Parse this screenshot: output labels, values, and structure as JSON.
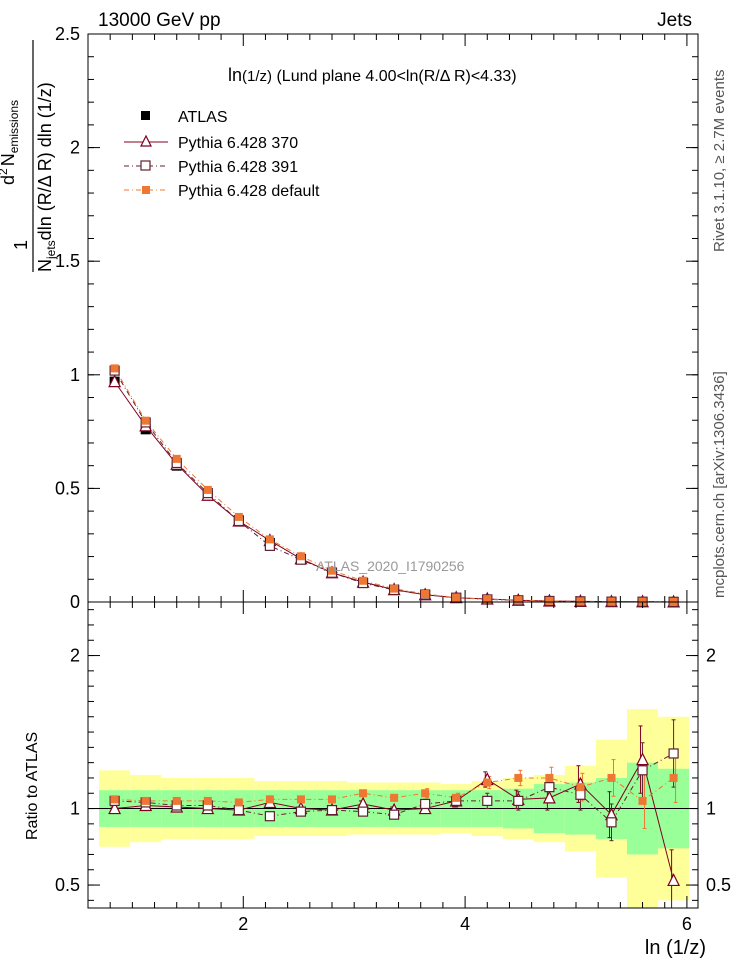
{
  "header": {
    "left": "13000 GeV pp",
    "right": "Jets"
  },
  "side": {
    "rivet": "Rivet 3.1.10, ≥ 2.7M events",
    "mcplots": "mcplots.cern.ch [arXiv:1306.3436]"
  },
  "watermark": "ATLAS_2020_I1790256",
  "chart_data": {
    "type": "scatter",
    "title": "ln(1/z) (Lund plane 4.00<ln(R/Δ R)<4.33)",
    "title_main": "ln",
    "title_sub": "(1/z)",
    "title_rest": " (Lund plane 4.00<ln(R/Δ R)<4.33)",
    "xlabel": "ln (1/z)",
    "ylabel": "1/N_jets d²N_emissions / dln(R/ΔR) dln(1/z)",
    "ylabel_parts": {
      "one": "1",
      "d2": "d",
      "two": "2",
      "N": "N",
      "emissions": "emissions",
      "Njets_N": "N",
      "jets": "jets",
      "dln": "dln (R/Δ R) dln (1/z)"
    },
    "ratio_ylabel": "Ratio to ATLAS",
    "xlim": [
      0.6,
      6.1
    ],
    "ylim": [
      0,
      2.5
    ],
    "ratio_ylim": [
      0.35,
      2.35
    ],
    "main_yticks": [
      {
        "v": 0,
        "label": "0"
      },
      {
        "v": 0.5,
        "label": "0.5"
      },
      {
        "v": 1,
        "label": "1"
      },
      {
        "v": 1.5,
        "label": "1.5"
      },
      {
        "v": 2,
        "label": "2"
      },
      {
        "v": 2.5,
        "label": "2.5"
      }
    ],
    "ratio_yticks": [
      {
        "v": 0.5,
        "label": "0.5"
      },
      {
        "v": 1,
        "label": "1"
      },
      {
        "v": 2,
        "label": "2"
      }
    ],
    "xticks": [
      {
        "v": 2,
        "label": "2"
      },
      {
        "v": 4,
        "label": "4"
      },
      {
        "v": 6,
        "label": "6"
      }
    ],
    "x": [
      0.84,
      1.12,
      1.4,
      1.68,
      1.96,
      2.24,
      2.52,
      2.8,
      3.08,
      3.36,
      3.64,
      3.92,
      4.2,
      4.48,
      4.76,
      5.04,
      5.32,
      5.6,
      5.88
    ],
    "bins": [
      0.7,
      0.98,
      1.26,
      1.54,
      1.82,
      2.1,
      2.38,
      2.66,
      2.94,
      3.22,
      3.5,
      3.78,
      4.06,
      4.34,
      4.62,
      4.9,
      5.18,
      5.46,
      5.74,
      6.02
    ],
    "data": {
      "name": "ATLAS",
      "values": [
        0.97,
        0.76,
        0.6,
        0.47,
        0.36,
        0.26,
        0.19,
        0.13,
        0.085,
        0.055,
        0.032,
        0.018,
        0.011,
        0.007,
        0.004,
        0.0025,
        0.0015,
        0.0009,
        0.0005
      ],
      "band_inner": [
        0.12,
        0.12,
        0.12,
        0.12,
        0.12,
        0.12,
        0.12,
        0.12,
        0.12,
        0.12,
        0.12,
        0.12,
        0.12,
        0.13,
        0.16,
        0.17,
        0.2,
        0.3,
        0.26
      ],
      "band_outer": [
        0.25,
        0.22,
        0.2,
        0.2,
        0.2,
        0.18,
        0.18,
        0.18,
        0.17,
        0.17,
        0.17,
        0.16,
        0.18,
        0.2,
        0.22,
        0.28,
        0.45,
        0.65,
        0.6
      ]
    },
    "series": [
      {
        "name": "Pythia 6.428 370",
        "color": "#800020",
        "marker": "triangle",
        "ratio": [
          1.0,
          1.02,
          1.01,
          1.0,
          0.99,
          1.04,
          1.0,
          0.99,
          1.03,
          0.99,
          1.0,
          1.05,
          1.19,
          1.06,
          1.07,
          1.16,
          0.96,
          1.32,
          0.53
        ],
        "ratio_err": [
          0.01,
          0.01,
          0.01,
          0.01,
          0.01,
          0.01,
          0.01,
          0.02,
          0.02,
          0.02,
          0.03,
          0.04,
          0.05,
          0.06,
          0.08,
          0.12,
          0.15,
          0.22,
          0.2
        ]
      },
      {
        "name": "Pythia 6.428 391",
        "color": "#602030",
        "marker": "square-open",
        "ratio": [
          1.05,
          1.04,
          1.02,
          1.02,
          0.99,
          0.95,
          0.98,
          0.99,
          0.98,
          0.96,
          1.03,
          1.05,
          1.05,
          1.05,
          1.14,
          1.09,
          0.91,
          1.25,
          1.36
        ],
        "ratio_err": [
          0.01,
          0.01,
          0.01,
          0.01,
          0.01,
          0.01,
          0.02,
          0.02,
          0.02,
          0.02,
          0.03,
          0.04,
          0.05,
          0.06,
          0.08,
          0.1,
          0.12,
          0.18,
          0.22
        ]
      },
      {
        "name": "Pythia 6.428 default",
        "color": "#ee7733",
        "marker": "square-filled",
        "ratio": [
          1.06,
          1.05,
          1.05,
          1.05,
          1.04,
          1.06,
          1.06,
          1.06,
          1.1,
          1.07,
          1.1,
          1.07,
          1.17,
          1.2,
          1.2,
          1.14,
          1.2,
          1.05,
          1.2
        ],
        "ratio_err": [
          0.01,
          0.01,
          0.01,
          0.01,
          0.01,
          0.01,
          0.02,
          0.02,
          0.02,
          0.02,
          0.03,
          0.03,
          0.04,
          0.05,
          0.07,
          0.09,
          0.12,
          0.18,
          0.16
        ]
      }
    ]
  }
}
